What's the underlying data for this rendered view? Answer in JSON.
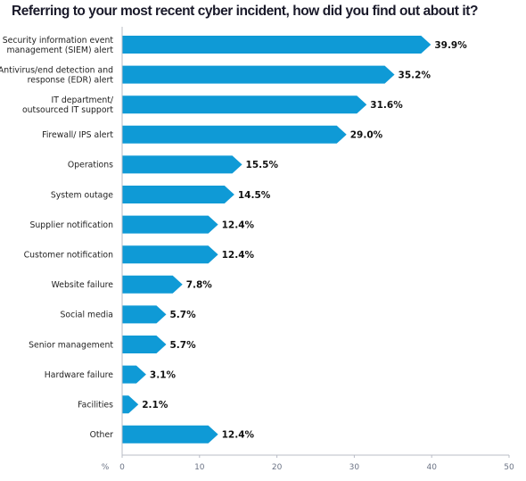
{
  "chart_data": {
    "type": "bar",
    "orientation": "horizontal",
    "title": "Referring to your most recent cyber incident, how did you find out about it?",
    "categories": [
      [
        "Security information event",
        "management (SIEM) alert"
      ],
      [
        "Antivirus/end detection and",
        "response (EDR) alert"
      ],
      [
        "IT department/",
        "outsourced IT support"
      ],
      [
        "Firewall/ IPS alert"
      ],
      [
        "Operations"
      ],
      [
        "System outage"
      ],
      [
        "Supplier notification"
      ],
      [
        "Customer notification"
      ],
      [
        "Website failure"
      ],
      [
        "Social media"
      ],
      [
        "Senior management"
      ],
      [
        "Hardware failure"
      ],
      [
        "Facilities"
      ],
      [
        "Other"
      ]
    ],
    "values": [
      39.9,
      35.2,
      31.6,
      29.0,
      15.5,
      14.5,
      12.4,
      12.4,
      7.8,
      5.7,
      5.7,
      3.1,
      2.1,
      12.4
    ],
    "value_labels": [
      "39.9%",
      "35.2%",
      "31.6%",
      "29.0%",
      "15.5%",
      "14.5%",
      "12.4%",
      "12.4%",
      "7.8%",
      "5.7%",
      "5.7%",
      "3.1%",
      "2.1%",
      "12.4%"
    ],
    "xlabel": "%",
    "xlim": [
      0,
      50
    ],
    "xticks": [
      "0",
      "10",
      "20",
      "30",
      "40",
      "50"
    ],
    "bar_color": "#0f9ad6",
    "grid": false
  }
}
